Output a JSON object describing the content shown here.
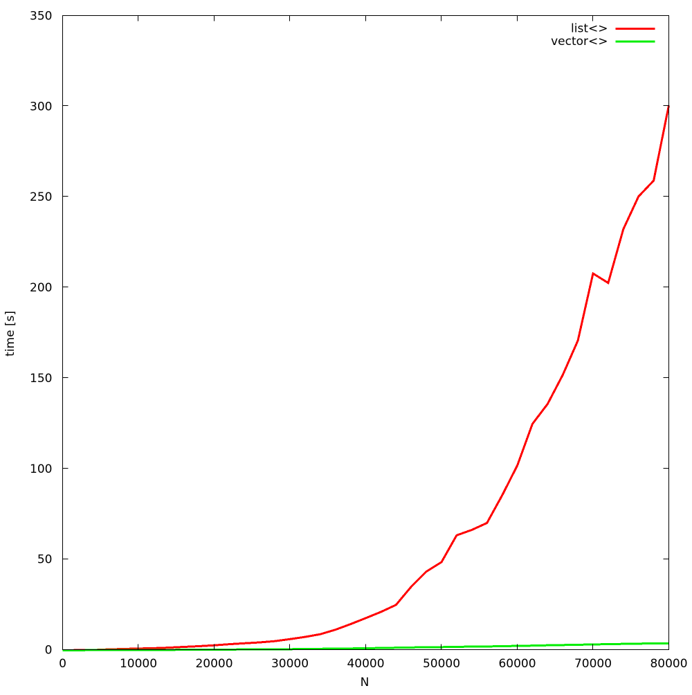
{
  "chart_data": {
    "type": "line",
    "title": "",
    "xlabel": "N",
    "ylabel": "time [s]",
    "xlim": [
      0,
      80000
    ],
    "ylim": [
      0,
      350
    ],
    "xticks": [
      0,
      10000,
      20000,
      30000,
      40000,
      50000,
      60000,
      70000,
      80000
    ],
    "yticks": [
      0,
      50,
      100,
      150,
      200,
      250,
      300,
      350
    ],
    "grid": false,
    "legend_position": "top-right-inside",
    "background_color": "#ffffff",
    "frame_color": "#000000",
    "text_color": "#000000",
    "x": [
      0,
      2000,
      4000,
      6000,
      8000,
      10000,
      12000,
      14000,
      16000,
      18000,
      20000,
      22000,
      24000,
      26000,
      28000,
      30000,
      32000,
      34000,
      36000,
      38000,
      40000,
      42000,
      44000,
      46000,
      48000,
      50000,
      52000,
      54000,
      56000,
      58000,
      60000,
      62000,
      64000,
      66000,
      68000,
      70000,
      72000,
      74000,
      76000,
      78000,
      80000
    ],
    "series": [
      {
        "name": "list<>",
        "color": "#ff0000",
        "values": [
          0.05,
          0.1,
          0.2,
          0.55,
          0.75,
          1.0,
          1.2,
          1.5,
          1.9,
          2.3,
          2.8,
          3.4,
          3.9,
          4.4,
          5.1,
          6.2,
          7.4,
          8.9,
          11.4,
          14.5,
          17.8,
          21.2,
          25.1,
          35.1,
          43.5,
          48.7,
          63.5,
          66.5,
          70.3,
          85.5,
          102,
          125,
          136,
          152,
          171,
          208,
          202.8,
          232.5,
          250.5,
          259.3,
          300.8
        ]
      },
      {
        "name": "vector<>",
        "color": "#00ee00",
        "values": [
          0.05,
          0.08,
          0.1,
          0.12,
          0.15,
          0.18,
          0.22,
          0.25,
          0.3,
          0.35,
          0.4,
          0.45,
          0.5,
          0.55,
          0.6,
          0.65,
          0.75,
          0.85,
          0.95,
          1.05,
          1.15,
          1.3,
          1.45,
          1.6,
          1.7,
          1.8,
          1.95,
          2.05,
          2.15,
          2.3,
          2.45,
          2.6,
          2.8,
          2.95,
          3.1,
          3.25,
          3.45,
          3.55,
          3.7,
          3.8,
          3.9
        ]
      }
    ]
  }
}
